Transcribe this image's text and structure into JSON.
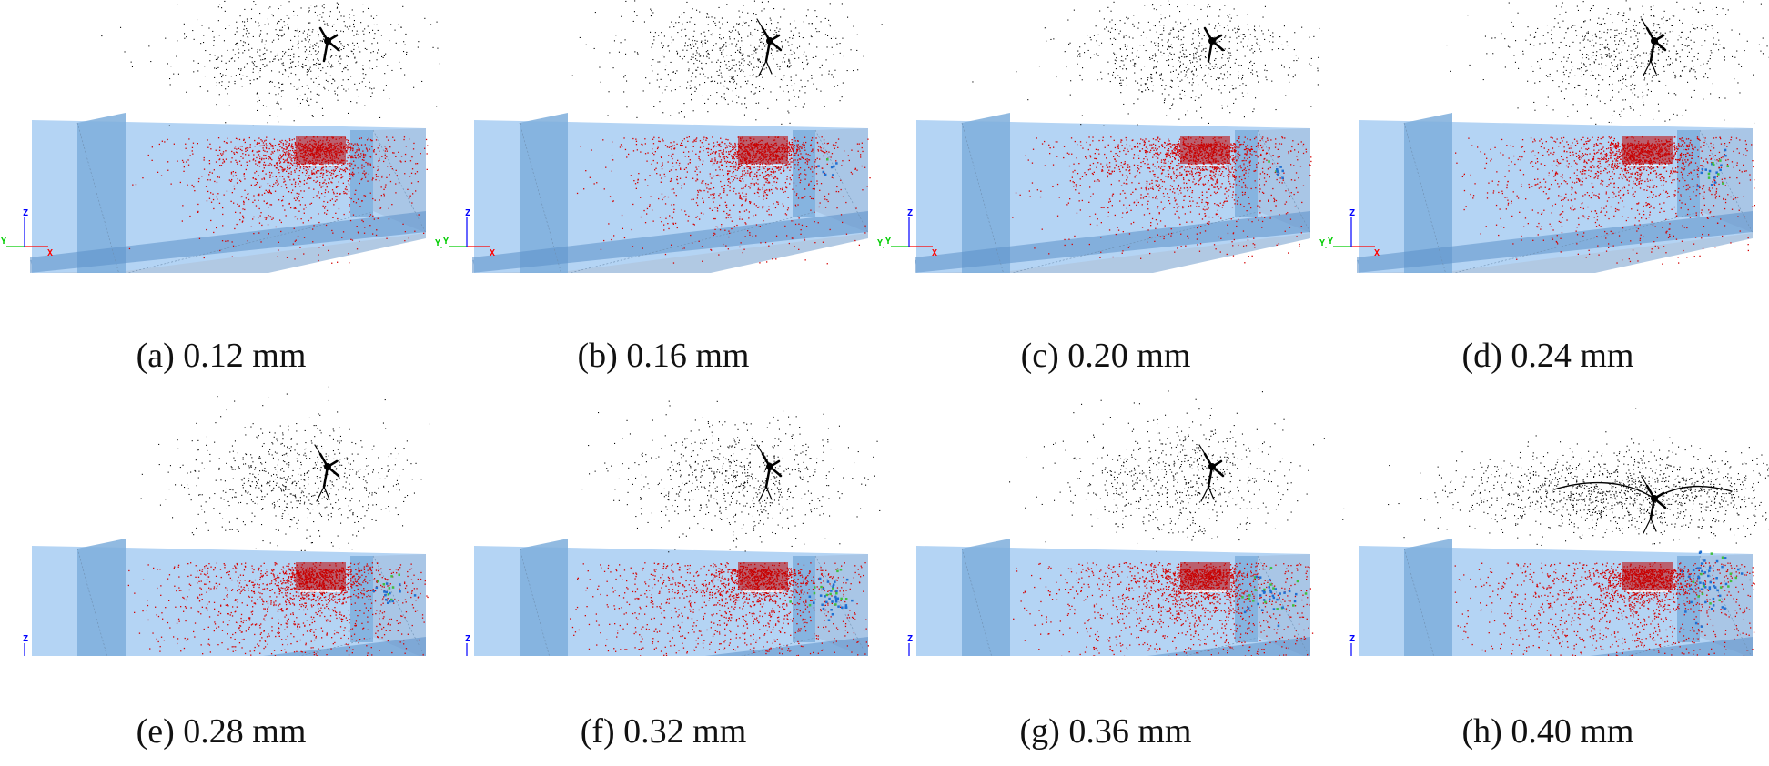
{
  "figure": {
    "panels": [
      {
        "id": "a",
        "caption": "(a) 0.12 mm",
        "thickness_mm": 0.12,
        "row": 0,
        "col": 0,
        "cluster_level": 0,
        "spread": 1.0,
        "tree": "small"
      },
      {
        "id": "b",
        "caption": "(b) 0.16 mm",
        "thickness_mm": 0.16,
        "row": 0,
        "col": 1,
        "cluster_level": 1,
        "spread": 1.0,
        "tree": "branch"
      },
      {
        "id": "c",
        "caption": "(c) 0.20 mm",
        "thickness_mm": 0.2,
        "row": 0,
        "col": 2,
        "cluster_level": 1,
        "spread": 1.1,
        "tree": "small"
      },
      {
        "id": "d",
        "caption": "(d) 0.24 mm",
        "thickness_mm": 0.24,
        "row": 0,
        "col": 3,
        "cluster_level": 2,
        "spread": 1.15,
        "tree": "branch"
      },
      {
        "id": "e",
        "caption": "(e) 0.28 mm",
        "thickness_mm": 0.28,
        "row": 1,
        "col": 0,
        "cluster_level": 2,
        "spread": 1.2,
        "tree": "branch"
      },
      {
        "id": "f",
        "caption": "(f) 0.32 mm",
        "thickness_mm": 0.32,
        "row": 1,
        "col": 1,
        "cluster_level": 3,
        "spread": 1.25,
        "tree": "branch"
      },
      {
        "id": "g",
        "caption": "(g) 0.36 mm",
        "thickness_mm": 0.36,
        "row": 1,
        "col": 2,
        "cluster_level": 3,
        "spread": 1.3,
        "tree": "branch"
      },
      {
        "id": "h",
        "caption": "(h) 0.40 mm",
        "thickness_mm": 0.4,
        "row": 1,
        "col": 3,
        "cluster_level": 4,
        "spread": 1.5,
        "tree": "wide"
      }
    ],
    "axis_labels": {
      "x": "X",
      "y": "Y",
      "z": "Z",
      "y_right": "Y_"
    },
    "colors": {
      "plane_light": "#b4d4f4",
      "plane_mid": "#7eaedc",
      "plane_dark": "#5b8fc9",
      "floor": "#a9c3e0",
      "red_particles": "#d40000",
      "red_dense": "#c00000",
      "black_particles": "#000000",
      "blue_cluster": "#1f6fd1",
      "green_cluster": "#3fbf3f",
      "axis_x": "#ff0000",
      "axis_y": "#00cc00",
      "axis_z": "#0000ff",
      "caption_text": "#111111"
    }
  }
}
